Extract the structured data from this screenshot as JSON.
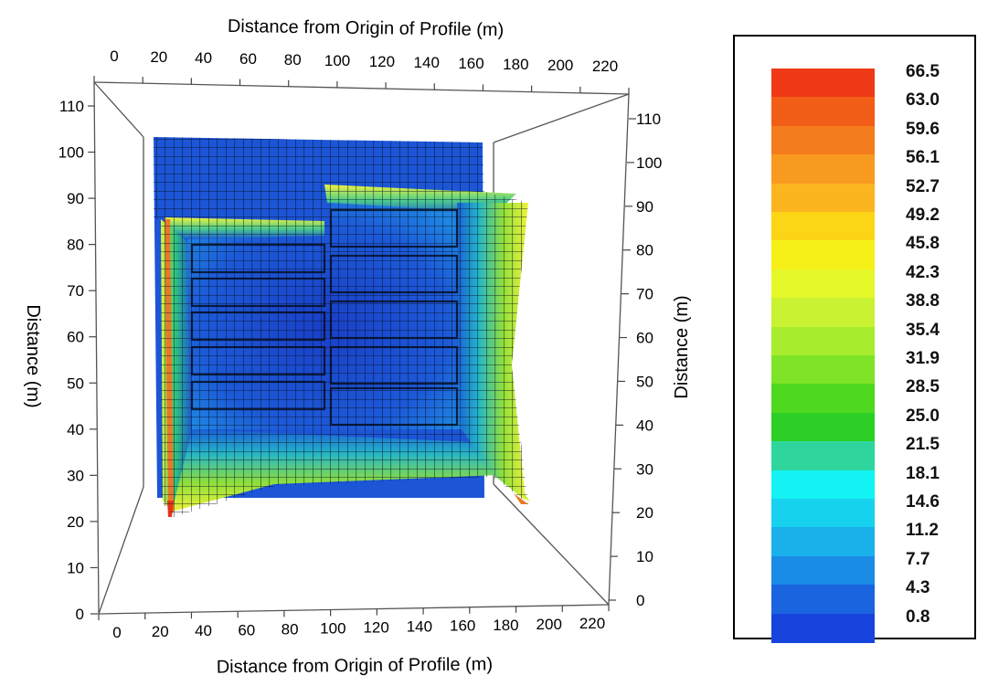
{
  "chart_data": {
    "type": "heatmap",
    "subtype": "3d-surface",
    "x_axis_top": {
      "label": "Distance from Origin of Profile (m)",
      "ticks": [
        "0",
        "20",
        "40",
        "60",
        "80",
        "100",
        "120",
        "140",
        "160",
        "180",
        "200",
        "220"
      ]
    },
    "x_axis_bottom": {
      "label": "Distance from Origin of Profile (m)",
      "ticks": [
        "0",
        "20",
        "40",
        "60",
        "80",
        "100",
        "120",
        "140",
        "160",
        "180",
        "200",
        "220"
      ]
    },
    "y_axis_left": {
      "label": "Distance (m)",
      "ticks": [
        "0",
        "10",
        "20",
        "30",
        "40",
        "50",
        "60",
        "70",
        "80",
        "90",
        "100",
        "110"
      ]
    },
    "y_axis_right": {
      "label": "Distance (m)",
      "ticks": [
        "0",
        "10",
        "20",
        "30",
        "40",
        "50",
        "60",
        "70",
        "80",
        "90",
        "100",
        "110"
      ]
    },
    "xlim": [
      0,
      220
    ],
    "ylim": [
      0,
      110
    ],
    "legend": {
      "placement": "right",
      "levels": [
        "66.5",
        "63.0",
        "59.6",
        "56.1",
        "52.7",
        "49.2",
        "45.8",
        "42.3",
        "38.8",
        "35.4",
        "31.9",
        "28.5",
        "25.0",
        "21.5",
        "18.1",
        "14.6",
        "11.2",
        "7.7",
        "4.3",
        "0.8"
      ],
      "colors": [
        "#ee3a16",
        "#f25d18",
        "#f57c1c",
        "#f89a1f",
        "#fbb51f",
        "#fcd516",
        "#f6f018",
        "#e5f82a",
        "#c8f232",
        "#a8ec2e",
        "#7fe328",
        "#4ed81f",
        "#2bcf25",
        "#2ed69e",
        "#13f3f3",
        "#16d2ee",
        "#1ab0ea",
        "#1a8ce6",
        "#1a64e0",
        "#1644dc"
      ]
    }
  },
  "colors": {
    "deep_blue": "#1b47d8",
    "mid_blue": "#1c6ee0",
    "cyan": "#17b8e8",
    "green": "#6fd63a",
    "yellow": "#ecf133",
    "orange": "#f2b02a",
    "red": "#e9331a"
  }
}
